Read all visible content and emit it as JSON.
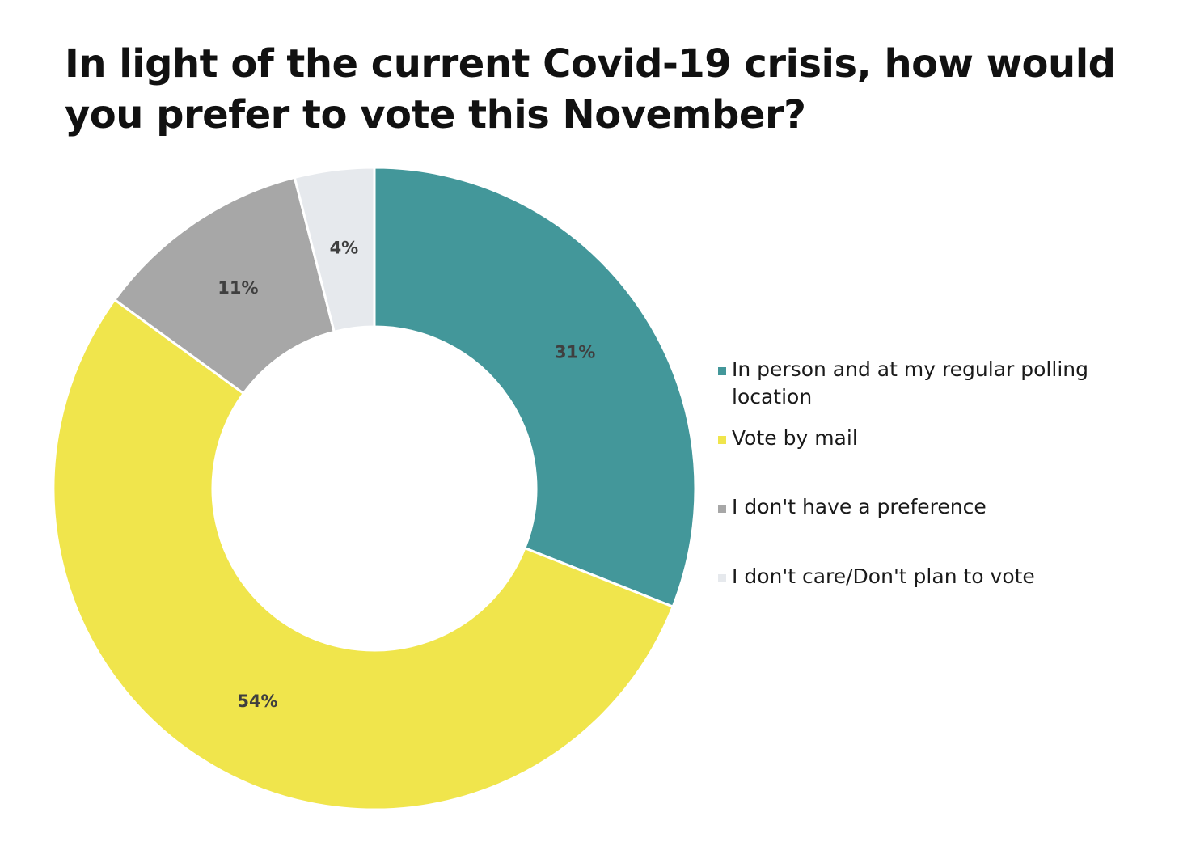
{
  "chart_data": {
    "type": "pie",
    "title": "In light of the current Covid-19 crisis, how would you prefer to vote this November?",
    "categories": [
      "In person and at my regular polling location",
      "Vote by mail",
      "I don't have a preference",
      "I don't care/Don't plan to vote"
    ],
    "values": [
      31,
      54,
      11,
      4
    ],
    "data_labels": [
      "31%",
      "54%",
      "11%",
      "4%"
    ],
    "colors": [
      "#43979a",
      "#f0e54c",
      "#a7a7a7",
      "#e6e9ed"
    ],
    "donut": true,
    "start_angle_deg": 0,
    "direction": "clockwise",
    "legend_position": "right"
  }
}
